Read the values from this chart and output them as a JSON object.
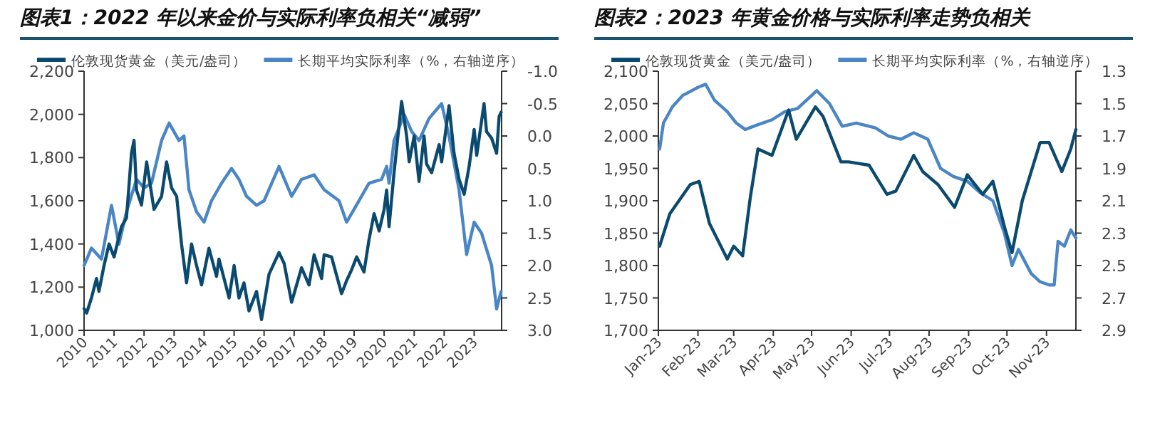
{
  "chart_data": [
    {
      "type": "line",
      "title": "图表1：2022 年以来金价与实际利率负相关“减弱”",
      "legend": "top",
      "xlim": [
        "2010-01-01",
        "2023-12-01"
      ],
      "xticks": [
        "2010",
        "2011",
        "2012",
        "2013",
        "2014",
        "2015",
        "2016",
        "2017",
        "2018",
        "2019",
        "2020",
        "2021",
        "2022",
        "2023"
      ],
      "ylim": [
        1000,
        2200
      ],
      "yticks": [
        {
          "value": 1000,
          "label": "1,000"
        },
        {
          "value": 1200,
          "label": "1,200"
        },
        {
          "value": 1400,
          "label": "1,400"
        },
        {
          "value": 1600,
          "label": "1,600"
        },
        {
          "value": 1800,
          "label": "1,800"
        },
        {
          "value": 2000,
          "label": "2,000"
        },
        {
          "value": 2200,
          "label": "2,200"
        }
      ],
      "y2lim": [
        3.0,
        -1.0
      ],
      "y2ticks": [
        {
          "value": -1,
          "label": "-1.0"
        },
        -0.5,
        {
          "value": 0,
          "label": "0.0"
        },
        0.5,
        {
          "value": 1,
          "label": "1.0"
        },
        1.5,
        {
          "value": 2,
          "label": "2.0"
        },
        2.5,
        {
          "value": 3,
          "label": "3.0"
        }
      ],
      "series": [
        {
          "name": "伦敦现货黄金（美元/盎司）",
          "color": "#0b4a6f",
          "x": [
            "2010-01",
            "2010-02",
            "2010-04",
            "2010-06",
            "2010-07",
            "2010-09",
            "2010-11",
            "2011-01",
            "2011-04",
            "2011-06",
            "2011-08",
            "2011-09",
            "2011-10",
            "2011-12",
            "2012-02",
            "2012-05",
            "2012-08",
            "2012-10",
            "2012-12",
            "2013-02",
            "2013-04",
            "2013-06",
            "2013-08",
            "2013-10",
            "2013-12",
            "2014-03",
            "2014-06",
            "2014-07",
            "2014-11",
            "2015-01",
            "2015-03",
            "2015-05",
            "2015-07",
            "2015-10",
            "2015-12",
            "2016-03",
            "2016-07",
            "2016-09",
            "2016-12",
            "2017-04",
            "2017-07",
            "2017-09",
            "2017-12",
            "2018-01",
            "2018-04",
            "2018-08",
            "2018-10",
            "2018-12",
            "2019-02",
            "2019-05",
            "2019-07",
            "2019-09",
            "2019-11",
            "2020-01",
            "2020-02",
            "2020-03",
            "2020-05",
            "2020-08",
            "2020-10",
            "2020-11",
            "2021-01",
            "2021-03",
            "2021-05",
            "2021-06",
            "2021-08",
            "2021-11",
            "2021-12",
            "2022-03",
            "2022-05",
            "2022-07",
            "2022-09",
            "2022-11",
            "2023-01",
            "2023-02",
            "2023-05",
            "2023-06",
            "2023-08",
            "2023-10",
            "2023-11",
            "2023-11-25"
          ],
          "values": [
            1100,
            1080,
            1150,
            1240,
            1180,
            1300,
            1400,
            1340,
            1480,
            1520,
            1820,
            1880,
            1650,
            1580,
            1780,
            1560,
            1620,
            1780,
            1660,
            1620,
            1400,
            1220,
            1400,
            1300,
            1210,
            1380,
            1250,
            1330,
            1150,
            1300,
            1150,
            1220,
            1090,
            1180,
            1050,
            1260,
            1360,
            1310,
            1130,
            1290,
            1210,
            1350,
            1240,
            1350,
            1340,
            1170,
            1230,
            1280,
            1340,
            1270,
            1420,
            1540,
            1460,
            1560,
            1650,
            1480,
            1730,
            2060,
            1900,
            1780,
            1900,
            1690,
            1900,
            1770,
            1730,
            1860,
            1780,
            2040,
            1820,
            1700,
            1630,
            1760,
            1930,
            1810,
            2050,
            1920,
            1890,
            1820,
            1990,
            2010
          ]
        },
        {
          "name": "长期平均实际利率（%，右轴逆序）",
          "color": "#4a86c5",
          "axis": "y2",
          "x": [
            "2010-01",
            "2010-04",
            "2010-08",
            "2010-12",
            "2011-03",
            "2011-06",
            "2011-10",
            "2012-01",
            "2012-04",
            "2012-08",
            "2012-11",
            "2013-03",
            "2013-05",
            "2013-07",
            "2013-10",
            "2014-01",
            "2014-04",
            "2014-08",
            "2014-12",
            "2015-03",
            "2015-06",
            "2015-10",
            "2016-01",
            "2016-07",
            "2016-12",
            "2017-04",
            "2017-09",
            "2018-01",
            "2018-07",
            "2018-10",
            "2019-01",
            "2019-07",
            "2019-12",
            "2020-02",
            "2020-03",
            "2020-05",
            "2020-09",
            "2020-12",
            "2021-03",
            "2021-07",
            "2021-12",
            "2022-03",
            "2022-07",
            "2022-10",
            "2023-01",
            "2023-04",
            "2023-08",
            "2023-10",
            "2023-11-25"
          ],
          "values": [
            2.0,
            1.73,
            1.9,
            1.07,
            1.67,
            1.17,
            0.67,
            0.8,
            0.73,
            0.07,
            -0.2,
            0.07,
            0.0,
            0.83,
            1.17,
            1.33,
            1.0,
            0.73,
            0.5,
            0.67,
            0.93,
            1.07,
            1.0,
            0.47,
            0.93,
            0.67,
            0.6,
            0.83,
            1.0,
            1.33,
            1.13,
            0.73,
            0.67,
            0.47,
            0.73,
            0.07,
            -0.33,
            -0.07,
            0.07,
            -0.27,
            -0.5,
            0.0,
            0.83,
            1.83,
            1.33,
            1.5,
            2.0,
            2.67,
            2.4
          ]
        }
      ]
    },
    {
      "type": "line",
      "title": "图表2：2023 年黄金价格与实际利率走势负相关",
      "legend": "top",
      "xlim": [
        "2023-01-01",
        "2023-11-24"
      ],
      "xticks": [
        {
          "value": "2023-01-01",
          "label": "Jan-23"
        },
        {
          "value": "2023-02-01",
          "label": "Feb-23"
        },
        {
          "value": "2023-03-01",
          "label": "Mar-23"
        },
        {
          "value": "2023-04-01",
          "label": "Apr-23"
        },
        {
          "value": "2023-05-01",
          "label": "May-23"
        },
        {
          "value": "2023-06-01",
          "label": "Jun-23"
        },
        {
          "value": "2023-07-01",
          "label": "Jul-23"
        },
        {
          "value": "2023-08-01",
          "label": "Aug-23"
        },
        {
          "value": "2023-09-01",
          "label": "Sep-23"
        },
        {
          "value": "2023-10-01",
          "label": "Oct-23"
        },
        {
          "value": "2023-11-01",
          "label": "Nov-23"
        }
      ],
      "ylim": [
        1700,
        2100
      ],
      "yticks": [
        {
          "value": 1700,
          "label": "1,700"
        },
        {
          "value": 1750,
          "label": "1,750"
        },
        {
          "value": 1800,
          "label": "1,800"
        },
        {
          "value": 1850,
          "label": "1,850"
        },
        {
          "value": 1900,
          "label": "1,900"
        },
        {
          "value": 1950,
          "label": "1,950"
        },
        {
          "value": 2000,
          "label": "2,000"
        },
        {
          "value": 2050,
          "label": "2,050"
        },
        {
          "value": 2100,
          "label": "2,100"
        }
      ],
      "y2lim": [
        2.9,
        1.3
      ],
      "y2ticks": [
        1.3,
        1.5,
        1.7,
        1.9,
        2.1,
        2.3,
        2.5,
        2.7,
        2.9
      ],
      "series": [
        {
          "name": "伦敦现货黄金（美元/盎司）",
          "color": "#0b4a6f",
          "x": [
            "2023-01-02",
            "2023-01-10",
            "2023-01-26",
            "2023-02-02",
            "2023-02-10",
            "2023-02-24",
            "2023-03-01",
            "2023-03-08",
            "2023-03-14",
            "2023-03-20",
            "2023-03-31",
            "2023-04-13",
            "2023-04-19",
            "2023-05-04",
            "2023-05-10",
            "2023-05-24",
            "2023-05-30",
            "2023-06-15",
            "2023-06-29",
            "2023-07-06",
            "2023-07-20",
            "2023-07-27",
            "2023-08-08",
            "2023-08-21",
            "2023-08-31",
            "2023-09-12",
            "2023-09-20",
            "2023-09-29",
            "2023-10-05",
            "2023-10-13",
            "2023-10-27",
            "2023-11-03",
            "2023-11-13",
            "2023-11-20",
            "2023-11-24"
          ],
          "values": [
            1830,
            1880,
            1925,
            1930,
            1865,
            1810,
            1830,
            1815,
            1905,
            1980,
            1970,
            2040,
            1995,
            2045,
            2030,
            1960,
            1960,
            1955,
            1910,
            1915,
            1970,
            1945,
            1925,
            1890,
            1940,
            1910,
            1930,
            1860,
            1820,
            1900,
            1990,
            1990,
            1945,
            1980,
            2010
          ]
        },
        {
          "name": "长期平均实际利率（%，右轴逆序）",
          "color": "#4a86c5",
          "axis": "y2",
          "x": [
            "2023-01-02",
            "2023-01-05",
            "2023-01-12",
            "2023-01-20",
            "2023-02-01",
            "2023-02-07",
            "2023-02-14",
            "2023-02-24",
            "2023-03-03",
            "2023-03-10",
            "2023-03-20",
            "2023-03-31",
            "2023-04-10",
            "2023-04-20",
            "2023-05-01",
            "2023-05-05",
            "2023-05-15",
            "2023-05-25",
            "2023-06-05",
            "2023-06-20",
            "2023-06-30",
            "2023-07-10",
            "2023-07-20",
            "2023-07-31",
            "2023-08-10",
            "2023-08-20",
            "2023-08-31",
            "2023-09-10",
            "2023-09-20",
            "2023-09-29",
            "2023-10-05",
            "2023-10-10",
            "2023-10-20",
            "2023-10-27",
            "2023-11-03",
            "2023-11-07",
            "2023-11-10",
            "2023-11-15",
            "2023-11-20",
            "2023-11-24"
          ],
          "values": [
            1.78,
            1.62,
            1.52,
            1.45,
            1.4,
            1.38,
            1.48,
            1.55,
            1.62,
            1.66,
            1.63,
            1.6,
            1.55,
            1.53,
            1.45,
            1.42,
            1.5,
            1.64,
            1.62,
            1.65,
            1.7,
            1.72,
            1.68,
            1.72,
            1.9,
            1.95,
            1.98,
            2.05,
            2.1,
            2.3,
            2.5,
            2.4,
            2.55,
            2.6,
            2.62,
            2.62,
            2.35,
            2.38,
            2.28,
            2.33
          ]
        }
      ]
    }
  ]
}
